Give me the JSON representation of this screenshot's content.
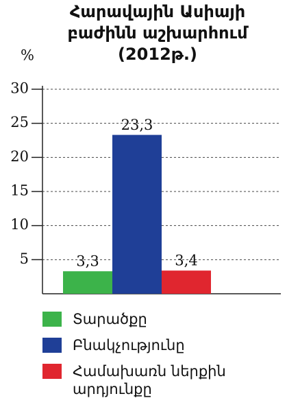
{
  "chart_data": {
    "type": "bar",
    "title": "Հարավային Ասիայի բաժինն աշխարհում (2012թ.)",
    "y_label": "%",
    "series": [
      {
        "name": "Տարածքը",
        "color": "#3cb34a",
        "values": [
          3.3
        ],
        "value_labels": [
          "3,3"
        ]
      },
      {
        "name": "Բնակչությունը",
        "color": "#1f3f97",
        "values": [
          23.3
        ],
        "value_labels": [
          "23,3"
        ]
      },
      {
        "name": "Համախառն ներքին արդյունքը",
        "color": "#e0262f",
        "values": [
          3.4
        ],
        "value_labels": [
          "3,4"
        ]
      }
    ],
    "ylim": [
      0,
      30
    ],
    "yticks": [
      5,
      10,
      15,
      20,
      25,
      30
    ],
    "grid": true
  }
}
